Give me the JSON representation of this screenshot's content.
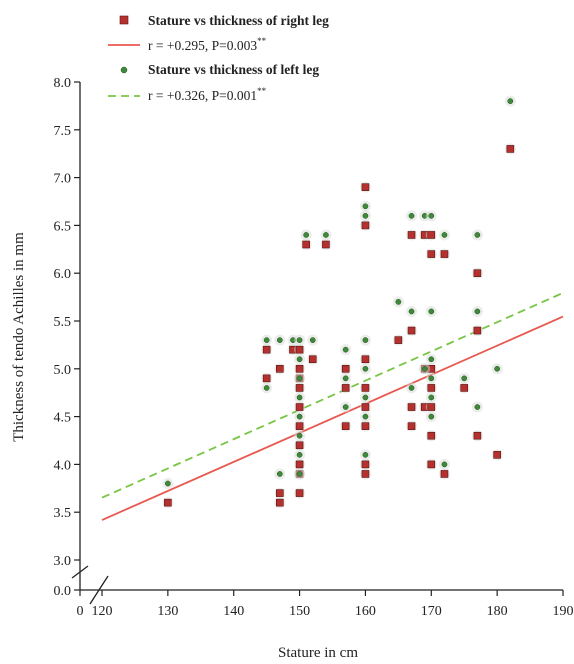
{
  "chart_data": {
    "type": "scatter",
    "title": "",
    "xlabel": "Stature in cm",
    "ylabel": "Thickness of tendo Achilles in mm",
    "xlim": [
      120,
      190
    ],
    "ylim": [
      3.0,
      8.0
    ],
    "x_ticks": [
      120,
      130,
      140,
      150,
      160,
      170,
      180,
      190
    ],
    "x_tick_labels": [
      "120",
      "130",
      "140",
      "150",
      "160",
      "170",
      "180",
      "190"
    ],
    "x_zero_label": "0",
    "y_ticks": [
      3.0,
      3.5,
      4.0,
      4.5,
      5.0,
      5.5,
      6.0,
      6.5,
      7.0,
      7.5,
      8.0
    ],
    "y_tick_labels": [
      "3.0",
      "3.5",
      "4.0",
      "4.5",
      "5.0",
      "5.5",
      "6.0",
      "6.5",
      "7.0",
      "7.5",
      "8.0"
    ],
    "y_zero_label": "0.0",
    "axis_break": true,
    "grid": false,
    "legend_position": "top-left",
    "series": [
      {
        "name": "Stature vs thickness of right leg",
        "marker": "square",
        "color": "#b5312f",
        "points": [
          [
            130,
            3.6
          ],
          [
            145,
            5.2
          ],
          [
            145,
            4.9
          ],
          [
            147,
            3.7
          ],
          [
            147,
            3.6
          ],
          [
            147,
            5.0
          ],
          [
            149,
            5.2
          ],
          [
            150,
            5.2
          ],
          [
            150,
            5.0
          ],
          [
            150,
            4.9
          ],
          [
            150,
            4.8
          ],
          [
            150,
            4.6
          ],
          [
            150,
            4.4
          ],
          [
            150,
            4.2
          ],
          [
            150,
            4.0
          ],
          [
            150,
            3.9
          ],
          [
            150,
            3.7
          ],
          [
            151,
            6.3
          ],
          [
            152,
            5.1
          ],
          [
            154,
            6.3
          ],
          [
            157,
            5.0
          ],
          [
            157,
            4.8
          ],
          [
            157,
            4.4
          ],
          [
            160,
            6.9
          ],
          [
            160,
            6.5
          ],
          [
            160,
            5.1
          ],
          [
            160,
            4.8
          ],
          [
            160,
            4.6
          ],
          [
            160,
            4.4
          ],
          [
            160,
            4.0
          ],
          [
            160,
            3.9
          ],
          [
            165,
            5.3
          ],
          [
            167,
            6.4
          ],
          [
            167,
            5.4
          ],
          [
            167,
            4.6
          ],
          [
            167,
            4.4
          ],
          [
            169,
            6.4
          ],
          [
            169,
            5.0
          ],
          [
            169,
            4.6
          ],
          [
            170,
            6.4
          ],
          [
            170,
            6.2
          ],
          [
            170,
            5.0
          ],
          [
            170,
            4.8
          ],
          [
            170,
            4.6
          ],
          [
            170,
            4.3
          ],
          [
            170,
            4.0
          ],
          [
            172,
            6.2
          ],
          [
            172,
            3.9
          ],
          [
            175,
            4.8
          ],
          [
            177,
            6.0
          ],
          [
            177,
            5.4
          ],
          [
            177,
            4.3
          ],
          [
            180,
            4.1
          ],
          [
            182,
            7.3
          ]
        ],
        "fit": {
          "label": "r = +0.295, P=0.003",
          "label_sup": "**",
          "intercept": -0.23,
          "slope": 0.0304,
          "color": "#e8584f",
          "style": "solid"
        }
      },
      {
        "name": "Stature vs thickness of left leg",
        "marker": "circle",
        "color": "#3f8a3a",
        "points": [
          [
            130,
            3.8
          ],
          [
            145,
            5.3
          ],
          [
            145,
            4.8
          ],
          [
            147,
            3.9
          ],
          [
            147,
            5.3
          ],
          [
            149,
            5.3
          ],
          [
            150,
            5.3
          ],
          [
            150,
            5.1
          ],
          [
            150,
            4.9
          ],
          [
            150,
            4.7
          ],
          [
            150,
            4.5
          ],
          [
            150,
            4.3
          ],
          [
            150,
            4.1
          ],
          [
            150,
            3.9
          ],
          [
            151,
            6.4
          ],
          [
            152,
            5.3
          ],
          [
            154,
            6.4
          ],
          [
            157,
            5.2
          ],
          [
            157,
            4.9
          ],
          [
            157,
            4.6
          ],
          [
            160,
            6.7
          ],
          [
            160,
            6.6
          ],
          [
            160,
            5.3
          ],
          [
            160,
            5.0
          ],
          [
            160,
            4.7
          ],
          [
            160,
            4.5
          ],
          [
            160,
            4.1
          ],
          [
            165,
            5.7
          ],
          [
            167,
            6.6
          ],
          [
            167,
            5.6
          ],
          [
            167,
            4.8
          ],
          [
            169,
            6.6
          ],
          [
            169,
            5.0
          ],
          [
            170,
            6.6
          ],
          [
            170,
            5.6
          ],
          [
            170,
            5.1
          ],
          [
            170,
            4.9
          ],
          [
            170,
            4.7
          ],
          [
            170,
            4.5
          ],
          [
            172,
            6.4
          ],
          [
            172,
            4.0
          ],
          [
            175,
            4.9
          ],
          [
            177,
            6.4
          ],
          [
            177,
            5.6
          ],
          [
            177,
            4.6
          ],
          [
            180,
            5.0
          ],
          [
            182,
            7.8
          ]
        ],
        "fit": {
          "label": "r = +0.326, P=0.001",
          "label_sup": "**",
          "intercept": -0.02,
          "slope": 0.0306,
          "color": "#78c545",
          "style": "dashed"
        }
      }
    ]
  }
}
